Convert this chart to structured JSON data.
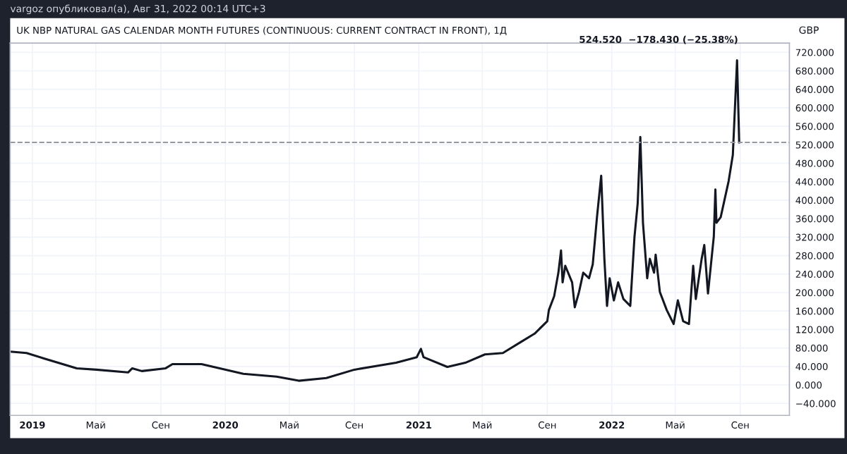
{
  "chart_data": {
    "type": "line",
    "title": "UK NBP NATURAL GAS CALENDAR MONTH FUTURES (CONTINUOUS: CURRENT CONTRACT IN FRONT), 1Д",
    "subtitle": "524.520  −178.430 (−25.38%)",
    "ylabel": "GBP",
    "annotations": [
      "vargoz опубликовал(а), Авг 31, 2022 00:14 UTC+3"
    ],
    "x": [
      "2018-11-20",
      "2018-12-21",
      "2019-01-24",
      "2019-03-26",
      "2019-05-02",
      "2019-07-01",
      "2019-07-09",
      "2019-07-27",
      "2019-09-10",
      "2019-09-23",
      "2019-11-17",
      "2020-02-04",
      "2020-04-07",
      "2020-05-19",
      "2020-07-10",
      "2020-09-01",
      "2020-11-19",
      "2020-12-28",
      "2021-01-05",
      "2021-01-10",
      "2021-02-24",
      "2021-03-30",
      "2021-05-06",
      "2021-06-09",
      "2021-07-13",
      "2021-08-08",
      "2021-09-01",
      "2021-09-04",
      "2021-09-14",
      "2021-09-22",
      "2021-09-27",
      "2021-09-30",
      "2021-10-05",
      "2021-10-18",
      "2021-10-23",
      "2021-10-31",
      "2021-11-08",
      "2021-11-19",
      "2021-11-26",
      "2021-12-04",
      "2021-12-12",
      "2021-12-18",
      "2021-12-23",
      "2021-12-28",
      "2022-01-05",
      "2022-01-13",
      "2022-01-23",
      "2022-02-05",
      "2022-02-13",
      "2022-02-19",
      "2022-02-24",
      "2022-03-01",
      "2022-03-09",
      "2022-03-14",
      "2022-03-22",
      "2022-03-25",
      "2022-04-02",
      "2022-04-15",
      "2022-04-28",
      "2022-05-06",
      "2022-05-16",
      "2022-05-27",
      "2022-06-04",
      "2022-06-09",
      "2022-06-20",
      "2022-06-25",
      "2022-07-02",
      "2022-07-13",
      "2022-07-16",
      "2022-07-18",
      "2022-07-26",
      "2022-08-10",
      "2022-08-18",
      "2022-08-26",
      "2022-08-30"
    ],
    "series": [
      {
        "color": "#131722",
        "values": [
          72,
          69,
          57,
          36,
          33,
          27,
          36,
          30,
          36,
          45,
          45,
          24,
          18,
          9,
          15,
          33,
          48,
          60,
          78,
          60,
          39,
          48,
          66,
          69,
          93,
          111,
          138,
          162,
          192,
          243,
          291,
          222,
          258,
          222,
          168,
          201,
          243,
          231,
          261,
          363,
          453,
          273,
          171,
          231,
          183,
          222,
          186,
          171,
          321,
          393,
          537,
          351,
          231,
          273,
          243,
          282,
          201,
          162,
          132,
          183,
          138,
          132,
          258,
          186,
          273,
          303,
          198,
          321,
          423,
          351,
          363,
          441,
          498,
          703,
          525
        ]
      }
    ],
    "xlim": [
      "2018-11-20",
      "2022-12-03"
    ],
    "xticks": [
      {
        "value": "2019-01-01",
        "label": "2019"
      },
      {
        "value": "2019-05-01",
        "label": "Май"
      },
      {
        "value": "2019-09-01",
        "label": "Сен"
      },
      {
        "value": "2020-01-01",
        "label": "2020"
      },
      {
        "value": "2020-05-01",
        "label": "Май"
      },
      {
        "value": "2020-09-01",
        "label": "Сен"
      },
      {
        "value": "2021-01-01",
        "label": "2021"
      },
      {
        "value": "2021-05-01",
        "label": "Май"
      },
      {
        "value": "2021-09-01",
        "label": "Сен"
      },
      {
        "value": "2022-01-01",
        "label": "2022"
      },
      {
        "value": "2022-05-01",
        "label": "Май"
      },
      {
        "value": "2022-09-01",
        "label": "Сен"
      }
    ],
    "ylim": [
      -66,
      740
    ],
    "yticks": [
      {
        "value": -40,
        "label": "−40.000"
      },
      {
        "value": 0,
        "label": "0.000"
      },
      {
        "value": 40,
        "label": "40.000"
      },
      {
        "value": 80,
        "label": "80.000"
      },
      {
        "value": 120,
        "label": "120.000"
      },
      {
        "value": 160,
        "label": "160.000"
      },
      {
        "value": 200,
        "label": "200.000"
      },
      {
        "value": 240,
        "label": "240.000"
      },
      {
        "value": 280,
        "label": "280.000"
      },
      {
        "value": 320,
        "label": "320.000"
      },
      {
        "value": 360,
        "label": "360.000"
      },
      {
        "value": 400,
        "label": "400.000"
      },
      {
        "value": 440,
        "label": "440.000"
      },
      {
        "value": 480,
        "label": "480.000"
      },
      {
        "value": 520,
        "label": "520.000"
      },
      {
        "value": 560,
        "label": "560.000"
      },
      {
        "value": 600,
        "label": "600.000"
      },
      {
        "value": 640,
        "label": "640.000"
      },
      {
        "value": 680,
        "label": "680.000"
      },
      {
        "value": 720,
        "label": "720.000"
      }
    ],
    "ref_lines": [
      {
        "axis": "y",
        "value": 525,
        "color": "#9598a1",
        "line_style": "dashed"
      }
    ],
    "grid": true,
    "legend": false,
    "marker": "none",
    "line_style": "solid"
  }
}
